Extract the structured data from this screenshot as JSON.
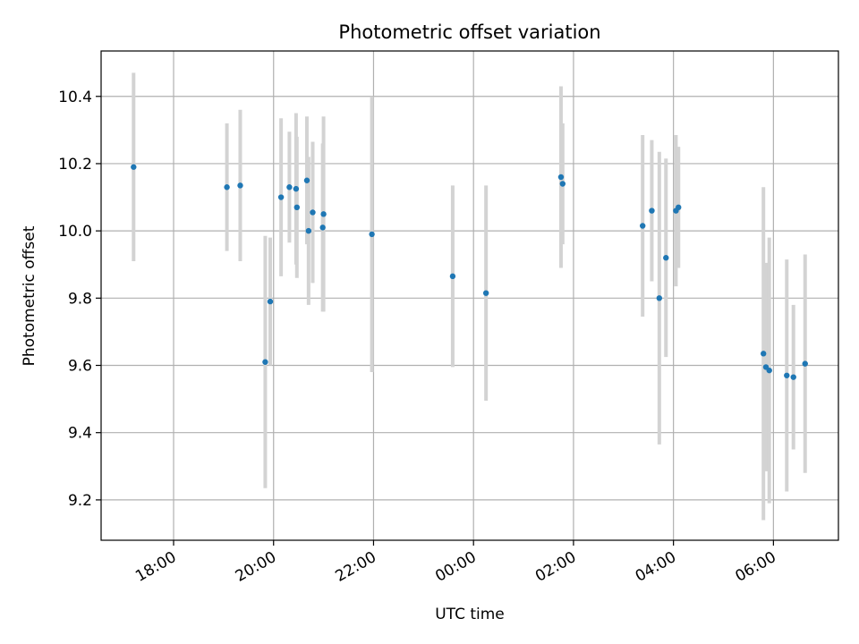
{
  "chart_data": {
    "type": "scatter",
    "title": "Photometric offset variation",
    "xlabel": "UTC time",
    "ylabel": "Photometric offset",
    "x_ticks": [
      "18:00",
      "20:00",
      "22:00",
      "00:00",
      "02:00",
      "04:00",
      "06:00"
    ],
    "x_tick_hours": [
      18,
      20,
      22,
      24,
      26,
      28,
      30
    ],
    "xlim_hours": [
      16.55,
      31.3
    ],
    "y_ticks": [
      "9.2",
      "9.4",
      "9.6",
      "9.8",
      "10.0",
      "10.2",
      "10.4"
    ],
    "y_tick_values": [
      9.2,
      9.4,
      9.6,
      9.8,
      10.0,
      10.2,
      10.4
    ],
    "ylim": [
      9.08,
      10.535
    ],
    "grid": true,
    "colors": {
      "marker": "#1f77b4",
      "errorbar": "#d3d3d3",
      "grid": "#b0b0b0",
      "axes": "#000000"
    },
    "points": [
      {
        "x": "17:12",
        "y": 10.19,
        "yerr": 0.28
      },
      {
        "x": "19:04",
        "y": 10.13,
        "yerr": 0.19
      },
      {
        "x": "19:20",
        "y": 10.135,
        "yerr": 0.225
      },
      {
        "x": "19:50",
        "y": 9.61,
        "yerr": 0.375
      },
      {
        "x": "19:56",
        "y": 9.79,
        "yerr": 0.19
      },
      {
        "x": "20:09",
        "y": 10.1,
        "yerr": 0.235
      },
      {
        "x": "20:19",
        "y": 10.13,
        "yerr": 0.165
      },
      {
        "x": "20:27",
        "y": 10.125,
        "yerr": 0.225
      },
      {
        "x": "20:28",
        "y": 10.07,
        "yerr": 0.21
      },
      {
        "x": "20:40",
        "y": 10.15,
        "yerr": 0.19
      },
      {
        "x": "20:42",
        "y": 10.0,
        "yerr": 0.22
      },
      {
        "x": "20:47",
        "y": 10.055,
        "yerr": 0.21
      },
      {
        "x": "20:59",
        "y": 10.01,
        "yerr": 0.25
      },
      {
        "x": "21:00",
        "y": 10.05,
        "yerr": 0.29
      },
      {
        "x": "21:58",
        "y": 9.99,
        "yerr": 0.41
      },
      {
        "x": "23:35",
        "y": 9.865,
        "yerr": 0.27
      },
      {
        "x": "00:15",
        "y": 9.815,
        "yerr": 0.32
      },
      {
        "x": "01:45",
        "y": 10.16,
        "yerr": 0.27
      },
      {
        "x": "01:47",
        "y": 10.14,
        "yerr": 0.18
      },
      {
        "x": "03:23",
        "y": 10.015,
        "yerr": 0.27
      },
      {
        "x": "03:34",
        "y": 10.06,
        "yerr": 0.21
      },
      {
        "x": "03:43",
        "y": 9.8,
        "yerr": 0.435
      },
      {
        "x": "03:51",
        "y": 9.92,
        "yerr": 0.295
      },
      {
        "x": "04:03",
        "y": 10.06,
        "yerr": 0.225
      },
      {
        "x": "04:06",
        "y": 10.07,
        "yerr": 0.18
      },
      {
        "x": "05:48",
        "y": 9.635,
        "yerr": 0.495
      },
      {
        "x": "05:51",
        "y": 9.595,
        "yerr": 0.31
      },
      {
        "x": "05:55",
        "y": 9.585,
        "yerr": 0.395
      },
      {
        "x": "06:16",
        "y": 9.57,
        "yerr": 0.345
      },
      {
        "x": "06:24",
        "y": 9.565,
        "yerr": 0.215
      },
      {
        "x": "06:38",
        "y": 9.605,
        "yerr": 0.325
      }
    ]
  }
}
